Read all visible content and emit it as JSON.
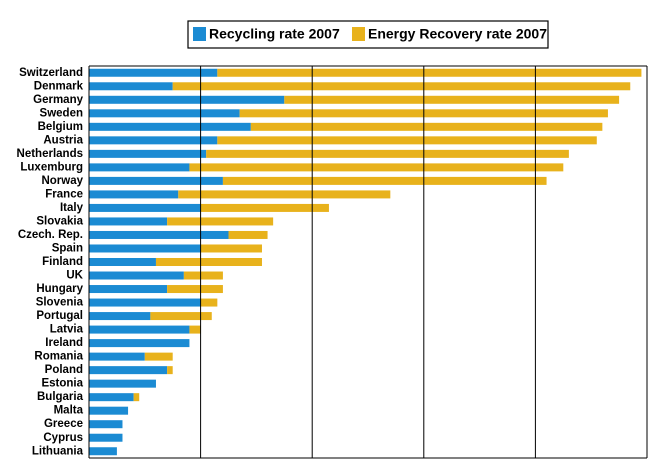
{
  "chart_data": {
    "type": "stacked_barh",
    "categories": [
      "Switzerland",
      "Denmark",
      "Germany",
      "Sweden",
      "Belgium",
      "Austria",
      "Netherlands",
      "Luxemburg",
      "Norway",
      "France",
      "Italy",
      "Slovakia",
      "Czech. Rep.",
      "Spain",
      "Finland",
      "UK",
      "Hungary",
      "Slovenia",
      "Portugal",
      "Latvia",
      "Ireland",
      "Romania",
      "Poland",
      "Estonia",
      "Bulgaria",
      "Malta",
      "Greece",
      "Cyprus",
      "Lithuania"
    ],
    "series": [
      {
        "name": "Recycling rate 2007",
        "color": "#1b8bd3",
        "values": [
          23,
          15,
          35,
          27,
          29,
          23,
          21,
          18,
          24,
          16,
          20,
          14,
          25,
          20,
          12,
          17,
          14,
          20,
          11,
          18,
          18,
          10,
          14,
          12,
          8,
          7,
          6,
          6,
          5
        ]
      },
      {
        "name": "Energy Recovery rate 2007",
        "color": "#e8b21c",
        "values": [
          76,
          82,
          60,
          66,
          63,
          68,
          65,
          67,
          58,
          38,
          23,
          19,
          7,
          11,
          19,
          7,
          10,
          3,
          11,
          2,
          0,
          5,
          1,
          0,
          1,
          0,
          0,
          0,
          0
        ]
      }
    ],
    "xlim": [
      0,
      100
    ],
    "xticks": [
      0,
      20,
      40,
      60,
      80,
      100
    ],
    "grid": true
  }
}
